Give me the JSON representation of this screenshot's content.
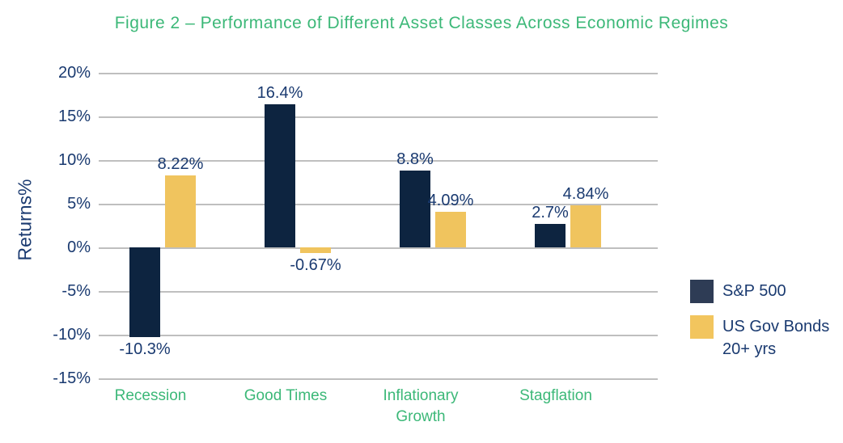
{
  "title": "Figure 2 – Performance of Different Asset Classes Across Economic Regimes",
  "colors": {
    "title_green": "#3cb878",
    "text_navy": "#1a3a70",
    "gridline_gray": "#bfbfbf",
    "sp500_bar": "#0d2440",
    "bonds_bar": "#f0c45e",
    "legend_sp500_swatch": "#2e3c55",
    "legend_bonds_swatch": "#f2c55e"
  },
  "chart_data": {
    "type": "bar",
    "title": "Figure 2 – Performance of Different Asset Classes Across Economic Regimes",
    "xlabel": "",
    "ylabel": "Returns%",
    "ylim": [
      -15,
      20
    ],
    "ytick_interval": 5,
    "ytick_labels": [
      "20%",
      "15%",
      "10%",
      "5%",
      "0%",
      "-5%",
      "-10%",
      "-15%"
    ],
    "grid": true,
    "legend_position": "right",
    "categories": [
      "Recession",
      "Good Times",
      "Inflationary Growth",
      "Stagflation"
    ],
    "series": [
      {
        "name": "S&P 500",
        "values": [
          -10.3,
          16.4,
          8.8,
          2.7
        ],
        "value_labels": [
          "-10.3%",
          "16.4%",
          "8.8%",
          "2.7%"
        ]
      },
      {
        "name": "US Gov Bonds 20+ yrs",
        "values": [
          8.22,
          -0.67,
          4.09,
          4.84
        ],
        "value_labels": [
          "8.22%",
          "-0.67%",
          "4.09%",
          "4.84%"
        ]
      }
    ]
  },
  "legend": {
    "sp500": "S&P 500",
    "bonds_line1": "US Gov Bonds",
    "bonds_line2": "20+ yrs"
  }
}
